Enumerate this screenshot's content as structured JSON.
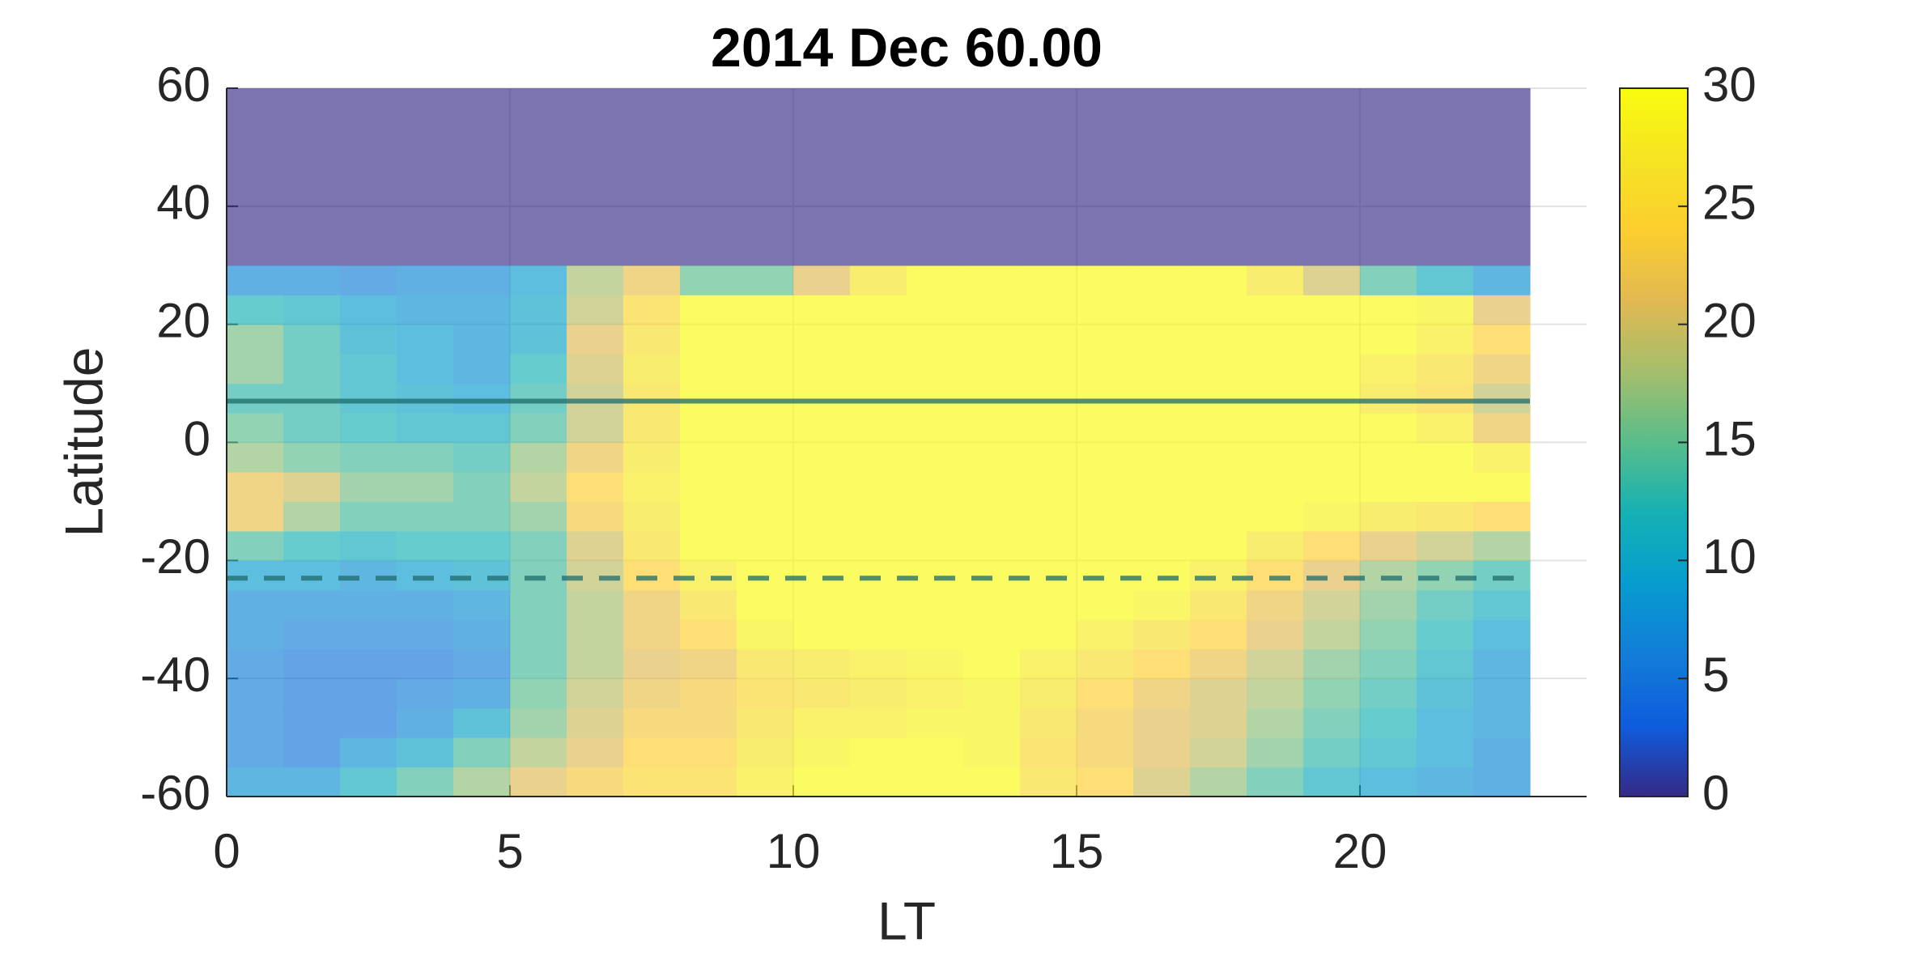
{
  "chart_data": {
    "type": "heatmap",
    "title": "2014 Dec    60.00",
    "xlabel": "LT",
    "ylabel": "Latitude",
    "colormap": "parula",
    "opacity": 0.65,
    "grid": true,
    "xlim": [
      0,
      24
    ],
    "xticks": [
      0,
      5,
      10,
      15,
      20
    ],
    "ylim": [
      -60,
      60
    ],
    "yticks": [
      -60,
      -40,
      -20,
      0,
      20,
      40,
      60
    ],
    "clim": [
      0,
      30
    ],
    "cticks": [
      0,
      5,
      10,
      15,
      20,
      25,
      30
    ],
    "x_edges": [
      0,
      1,
      2,
      3,
      4,
      5,
      6,
      7,
      8,
      9,
      10,
      11,
      12,
      13,
      14,
      15,
      16,
      17,
      18,
      19,
      20,
      21,
      22,
      23
    ],
    "y_edges": [
      -60,
      -55,
      -50,
      -45,
      -40,
      -35,
      -30,
      -25,
      -20,
      -15,
      -10,
      -5,
      0,
      5,
      10,
      15,
      20,
      25,
      30,
      60
    ],
    "z": [
      [
        8,
        8,
        11,
        14,
        17,
        21,
        23,
        25,
        25,
        28,
        30,
        30,
        30,
        30,
        26,
        24,
        20,
        17,
        14,
        11,
        9,
        8,
        7
      ],
      [
        6,
        5,
        8,
        10,
        14,
        18,
        21,
        24,
        24,
        27,
        29,
        30,
        30,
        29,
        25,
        23,
        21,
        19,
        16,
        13,
        11,
        9,
        7
      ],
      [
        6,
        5,
        5,
        7,
        10,
        16,
        20,
        23,
        23,
        26,
        28,
        28,
        29,
        29,
        26,
        23,
        21,
        20,
        17,
        14,
        12,
        9,
        8
      ],
      [
        6,
        5,
        5,
        6,
        7,
        15,
        19,
        22,
        23,
        25,
        26,
        27,
        28,
        29,
        27,
        24,
        22,
        20,
        18,
        15,
        13,
        10,
        8
      ],
      [
        6,
        5,
        5,
        5,
        6,
        14,
        18,
        21,
        22,
        26,
        27,
        28,
        29,
        30,
        28,
        26,
        24,
        22,
        19,
        16,
        14,
        11,
        8
      ],
      [
        7,
        6,
        6,
        6,
        7,
        14,
        18,
        22,
        24,
        29,
        30,
        30,
        30,
        30,
        30,
        28,
        26,
        24,
        21,
        18,
        15,
        12,
        9
      ],
      [
        7,
        7,
        7,
        7,
        8,
        14,
        18,
        22,
        26,
        30,
        30,
        30,
        30,
        30,
        30,
        30,
        29,
        26,
        22,
        19,
        16,
        13,
        11
      ],
      [
        9,
        9,
        8,
        9,
        10,
        14,
        19,
        24,
        28,
        30,
        30,
        30,
        30,
        30,
        30,
        30,
        30,
        28,
        24,
        21,
        17,
        15,
        13
      ],
      [
        14,
        12,
        11,
        12,
        12,
        14,
        20,
        26,
        30,
        30,
        30,
        30,
        30,
        30,
        30,
        30,
        30,
        30,
        27,
        24,
        21,
        19,
        17
      ],
      [
        22,
        17,
        14,
        14,
        14,
        16,
        23,
        27,
        30,
        30,
        30,
        30,
        30,
        30,
        30,
        30,
        30,
        30,
        30,
        29,
        27,
        26,
        24
      ],
      [
        22,
        20,
        16,
        16,
        14,
        18,
        24,
        28,
        30,
        30,
        30,
        30,
        30,
        30,
        30,
        30,
        30,
        30,
        30,
        30,
        30,
        30,
        30
      ],
      [
        17,
        15,
        14,
        14,
        13,
        17,
        22,
        27,
        30,
        30,
        30,
        30,
        30,
        30,
        30,
        30,
        30,
        30,
        30,
        30,
        30,
        30,
        28
      ],
      [
        15,
        13,
        12,
        11,
        11,
        14,
        19,
        26,
        30,
        30,
        30,
        30,
        30,
        30,
        30,
        30,
        30,
        30,
        30,
        30,
        30,
        28,
        22
      ],
      [
        13,
        13,
        11,
        10,
        9,
        13,
        19,
        26,
        30,
        30,
        30,
        30,
        30,
        30,
        30,
        30,
        30,
        30,
        30,
        30,
        27,
        25,
        19
      ],
      [
        16,
        13,
        11,
        9,
        8,
        12,
        20,
        27,
        30,
        30,
        30,
        30,
        30,
        30,
        30,
        30,
        30,
        30,
        30,
        30,
        28,
        26,
        22
      ],
      [
        16,
        13,
        10,
        9,
        8,
        10,
        21,
        26,
        30,
        30,
        30,
        30,
        30,
        30,
        30,
        30,
        30,
        30,
        30,
        30,
        30,
        28,
        24
      ],
      [
        12,
        11,
        9,
        8,
        8,
        10,
        19,
        25,
        30,
        30,
        30,
        30,
        30,
        30,
        30,
        30,
        30,
        30,
        30,
        30,
        30,
        29,
        21
      ],
      [
        7,
        7,
        6,
        7,
        7,
        9,
        18,
        22,
        15,
        15,
        21,
        27,
        30,
        30,
        30,
        30,
        30,
        30,
        27,
        20,
        14,
        11,
        8
      ],
      [
        0,
        0,
        0,
        0,
        0,
        0,
        0,
        0,
        0,
        0,
        0,
        0,
        0,
        0,
        0,
        0,
        0,
        0,
        0,
        0,
        0,
        0,
        0
      ]
    ],
    "reference_lines": [
      {
        "y": 7,
        "style": "solid"
      },
      {
        "y": -23,
        "style": "dashed"
      }
    ],
    "reference_color": "#1d6b6b"
  }
}
